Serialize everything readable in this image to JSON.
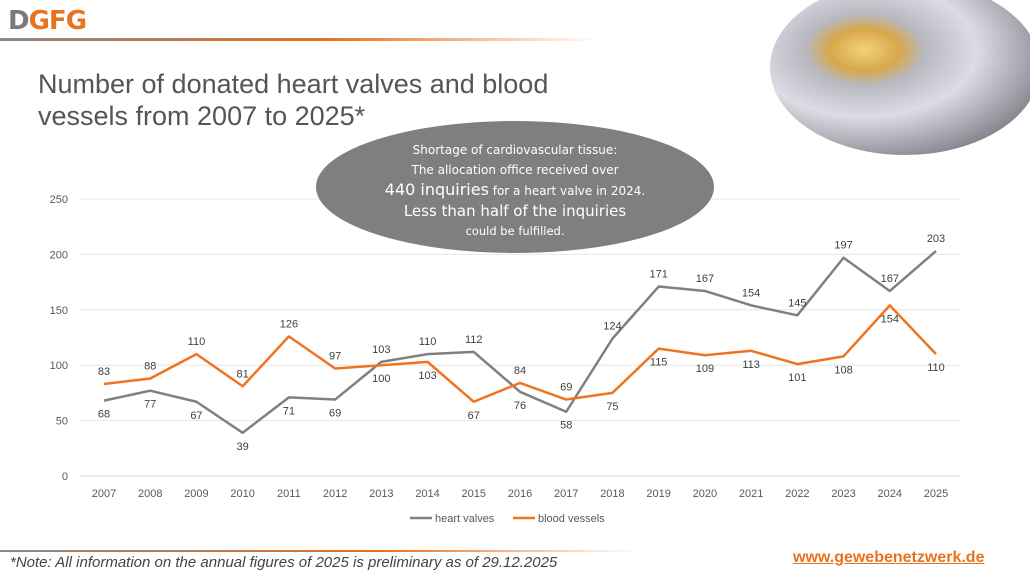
{
  "header": {
    "logo": "DGFG",
    "title": "Number of donated heart valves and blood vessels from 2007 to 2025*"
  },
  "callout": {
    "line1": "Shortage of cardiovascular tissue:",
    "line2": "The allocation office received over",
    "line3_big": "440 inquiries",
    "line3_small": " for a heart valve in 2024.",
    "line4": "Less than half of the inquiries",
    "line5": "could be fulfilled."
  },
  "footer": {
    "note": "*Note: All information on the annual figures of 2025 is preliminary as of 29.12.2025",
    "url": "www.gewebenetzwerk.de"
  },
  "colors": {
    "heart_valves": "#808080",
    "blood_vessels": "#f07320",
    "accent": "#e8731e"
  },
  "chart_data": {
    "type": "line",
    "categories": [
      "2007",
      "2008",
      "2009",
      "2010",
      "2011",
      "2012",
      "2013",
      "2014",
      "2015",
      "2016",
      "2017",
      "2018",
      "2019",
      "2020",
      "2021",
      "2022",
      "2023",
      "2024",
      "2025"
    ],
    "series": [
      {
        "name": "heart valves",
        "values": [
          68,
          77,
          67,
          39,
          71,
          69,
          103,
          110,
          112,
          76,
          58,
          124,
          171,
          167,
          154,
          145,
          197,
          167,
          203
        ]
      },
      {
        "name": "blood vessels",
        "values": [
          83,
          88,
          110,
          81,
          126,
          97,
          100,
          103,
          67,
          84,
          69,
          75,
          115,
          109,
          113,
          101,
          108,
          154,
          110
        ]
      }
    ],
    "ylim": [
      0,
      250
    ],
    "yticks": [
      0,
      50,
      100,
      150,
      200,
      250
    ],
    "grid": true,
    "legend": "bottom"
  }
}
